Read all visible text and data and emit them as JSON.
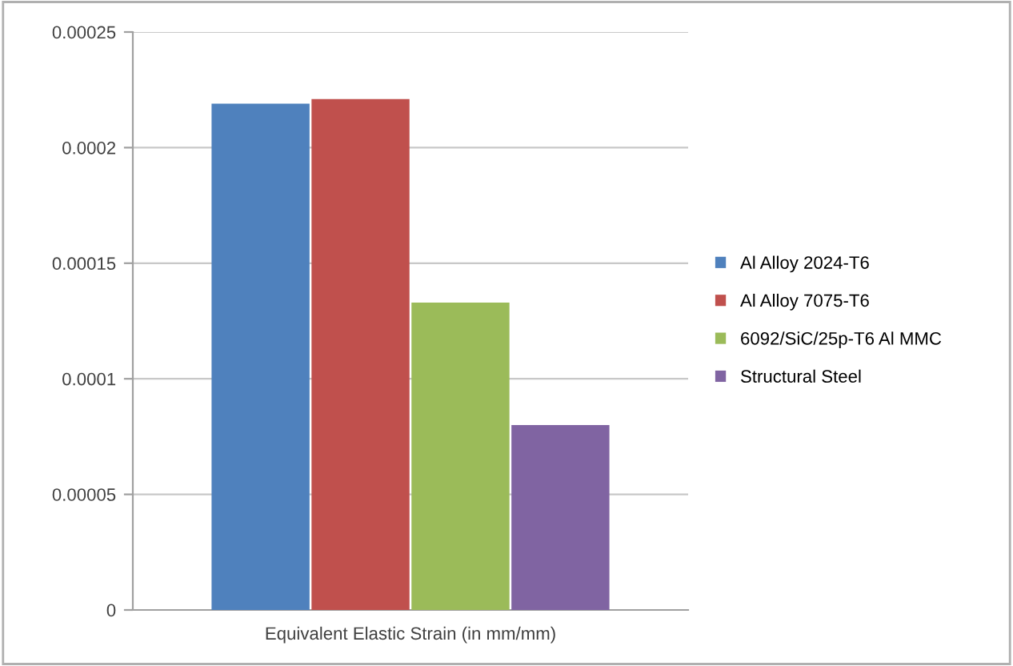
{
  "chart_data": {
    "type": "bar",
    "xlabel": "Equivalent Elastic Strain (in mm/mm)",
    "categories": [
      null
    ],
    "series": [
      {
        "name": "Al Alloy 2024-T6",
        "color": "#4f81bd",
        "values": [
          0.000219
        ]
      },
      {
        "name": "Al Alloy 7075-T6",
        "color": "#c0504d",
        "values": [
          0.000221
        ]
      },
      {
        "name": "6092/SiC/25p-T6 Al MMC",
        "color": "#9bbb59",
        "values": [
          0.000133
        ]
      },
      {
        "name": "Structural Steel",
        "color": "#8064a2",
        "values": [
          8e-05
        ]
      }
    ],
    "ylim": [
      0,
      0.00025
    ],
    "yticks": [
      {
        "value": 0,
        "label": "0"
      },
      {
        "value": 5e-05,
        "label": "0.00005"
      },
      {
        "value": 0.0001,
        "label": "0.0001"
      },
      {
        "value": 0.00015,
        "label": "0.00015"
      },
      {
        "value": 0.0002,
        "label": "0.0002"
      },
      {
        "value": 0.00025,
        "label": "0.00025"
      }
    ],
    "grid": "y",
    "legend": "right"
  }
}
